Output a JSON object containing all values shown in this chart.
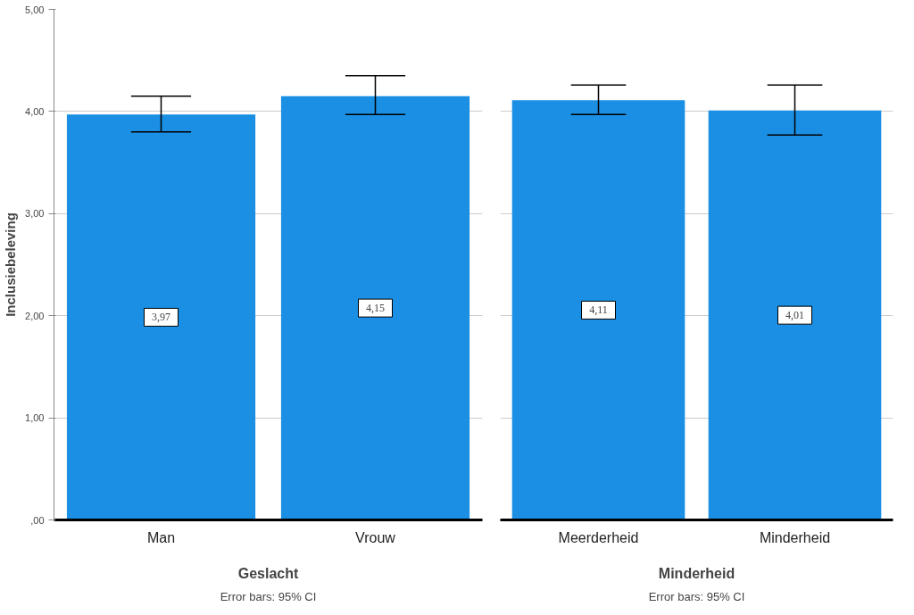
{
  "chart_data": [
    {
      "type": "bar",
      "xlabel": "Geslacht",
      "ylabel": "Inclusiebeleving",
      "categories": [
        "Man",
        "Vrouw"
      ],
      "values": [
        3.97,
        4.15
      ],
      "color": "#1a8fe3",
      "errors": [
        [
          3.8,
          4.15
        ],
        [
          3.97,
          4.35
        ]
      ],
      "value_labels": [
        "3,97",
        "4,15"
      ],
      "ylim": [
        0,
        5
      ],
      "yticks": [
        {
          "value": 0,
          "label": ",00"
        },
        {
          "value": 1,
          "label": "1,00"
        },
        {
          "value": 2,
          "label": "2,00"
        },
        {
          "value": 3,
          "label": "3,00"
        },
        {
          "value": 4,
          "label": "4,00"
        },
        {
          "value": 5,
          "label": "5,00"
        }
      ],
      "grid": "y",
      "annotations": [
        "Error bars: 95% CI"
      ]
    },
    {
      "type": "bar",
      "xlabel": "Minderheid",
      "categories": [
        "Meerderheid",
        "Minderheid"
      ],
      "values": [
        4.11,
        4.01
      ],
      "color": "#1a8fe3",
      "errors": [
        [
          3.97,
          4.26
        ],
        [
          3.77,
          4.26
        ]
      ],
      "value_labels": [
        "4,11",
        "4,01"
      ],
      "ylim": [
        0,
        5
      ],
      "yticks": [
        0,
        1,
        2,
        3,
        4,
        5
      ],
      "grid": "y",
      "tick_labels": "x",
      "annotations": [
        "Error bars: 95% CI"
      ]
    }
  ]
}
